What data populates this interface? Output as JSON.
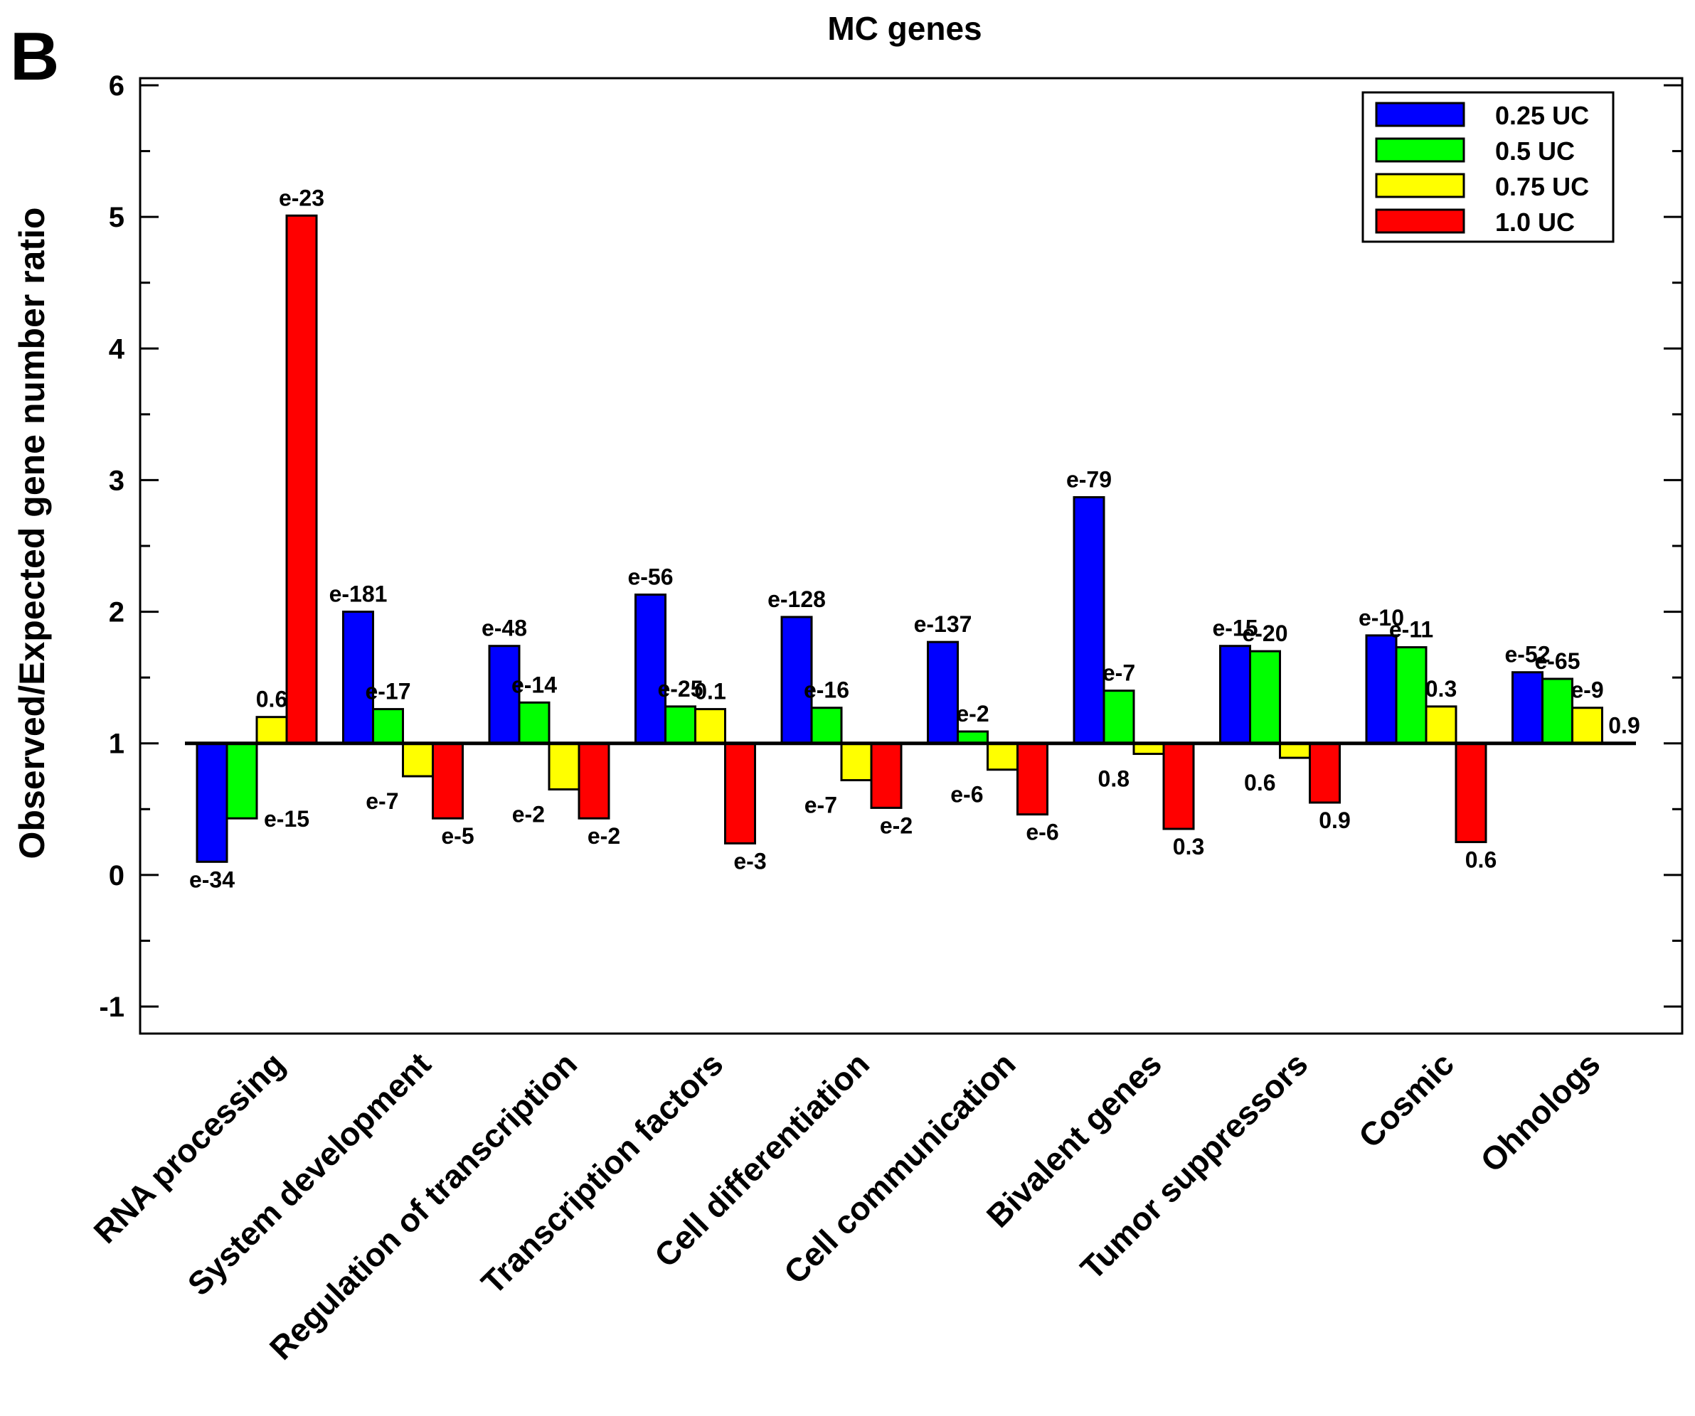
{
  "panel_label": "B",
  "chart_data": {
    "type": "bar",
    "title": "MC genes",
    "xlabel": "",
    "ylabel": "Observed/Expected gene number ratio",
    "ylim": [
      -1.2,
      6.2
    ],
    "yticks": [
      -1,
      0,
      1,
      2,
      3,
      4,
      5,
      6
    ],
    "baseline": 1,
    "grid": false,
    "legend_position": "top-right",
    "categories": [
      "RNA processing",
      "System development",
      "Regulation of transcription",
      "Transcription factors",
      "Cell differentiation",
      "Cell communication",
      "Bivalent genes",
      "Tumor suppressors",
      "Cosmic",
      "Ohnologs"
    ],
    "series": [
      {
        "name": "0.25 UC",
        "color": "#0000ff",
        "values": [
          0.1,
          2.0,
          1.74,
          2.13,
          1.96,
          1.77,
          2.87,
          1.74,
          1.82,
          1.54
        ],
        "labels": [
          "e-34",
          "e-181",
          "e-48",
          "e-56",
          "e-128",
          "e-137",
          "e-79",
          "e-15",
          "e-10",
          "e-52"
        ]
      },
      {
        "name": "0.5 UC",
        "color": "#00ff00",
        "values": [
          0.43,
          1.26,
          1.31,
          1.28,
          1.27,
          1.09,
          1.4,
          1.7,
          1.73,
          1.49
        ],
        "labels": [
          "e-15",
          "e-17",
          "e-14",
          "e-25",
          "e-16",
          "e-2",
          "e-7",
          "e-20",
          "e-11",
          "e-65"
        ]
      },
      {
        "name": "0.75 UC",
        "color": "#ffff00",
        "values": [
          1.2,
          0.75,
          0.65,
          1.26,
          0.72,
          0.8,
          0.92,
          0.89,
          1.28,
          1.27
        ],
        "labels": [
          "0.6",
          "e-7",
          "e-2",
          "0.1",
          "e-7",
          "e-6",
          "0.8",
          "0.6",
          "0.3",
          "e-9"
        ]
      },
      {
        "name": "1.0 UC",
        "color": "#ff0000",
        "values": [
          5.01,
          0.43,
          0.43,
          0.24,
          0.51,
          0.46,
          0.35,
          0.55,
          0.25,
          1.0
        ],
        "labels": [
          "e-23",
          "e-5",
          "e-2",
          "e-3",
          "e-2",
          "e-6",
          "0.3",
          "0.9",
          "0.6",
          "0.9"
        ]
      }
    ]
  }
}
